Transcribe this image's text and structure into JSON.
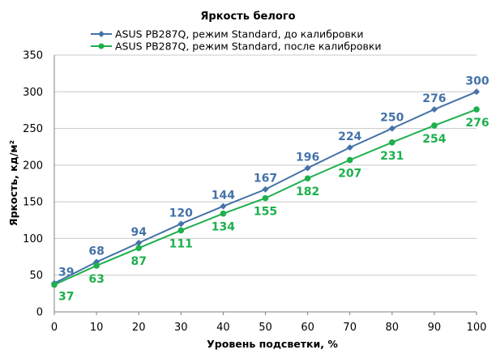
{
  "chart_data": {
    "type": "line",
    "title": "Яркость белого",
    "xlabel": "Уровень подсветки, %",
    "ylabel": "Яркость, кд/м²",
    "x": [
      0,
      10,
      20,
      30,
      40,
      50,
      60,
      70,
      80,
      90,
      100
    ],
    "xlim": [
      0,
      100
    ],
    "ylim": [
      0,
      350
    ],
    "xticks": [
      0,
      10,
      20,
      30,
      40,
      50,
      60,
      70,
      80,
      90,
      100
    ],
    "yticks": [
      0,
      50,
      100,
      150,
      200,
      250,
      300,
      350
    ],
    "grid": true,
    "legend_position": "top",
    "series": [
      {
        "name": "ASUS PB287Q, режим Standard, до калибровки",
        "color": "#4472a8",
        "marker": "diamond",
        "values": [
          39,
          68,
          94,
          120,
          144,
          167,
          196,
          224,
          250,
          276,
          300
        ]
      },
      {
        "name": "ASUS PB287Q, режим Standard, после калибровки",
        "color": "#1db04d",
        "marker": "circle",
        "values": [
          37,
          63,
          87,
          111,
          134,
          155,
          182,
          207,
          231,
          254,
          276
        ]
      }
    ]
  }
}
